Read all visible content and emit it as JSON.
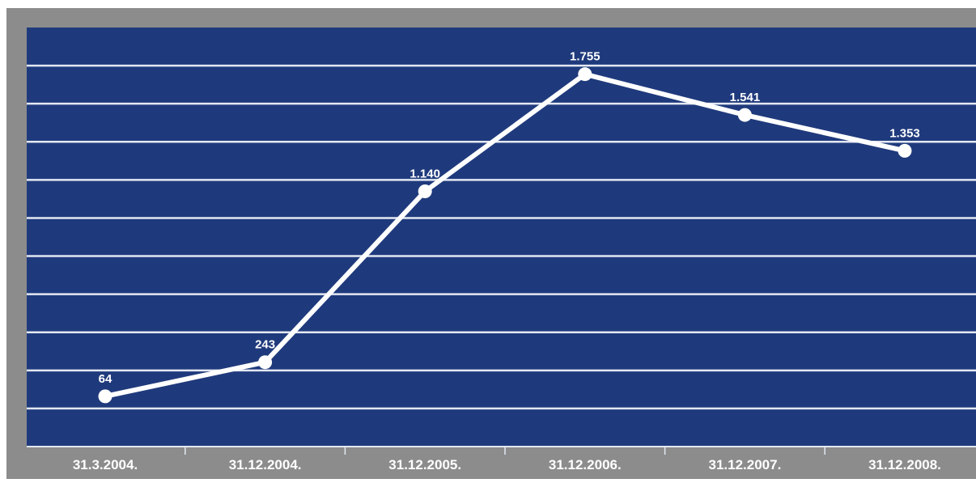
{
  "chart_data": {
    "type": "line",
    "categories": [
      "31.3.2004.",
      "31.12.2004.",
      "31.12.2005.",
      "31.12.2006.",
      "31.12.2007.",
      "31.12.2008."
    ],
    "series": [
      {
        "values": [
          64,
          243,
          1140,
          1755,
          1541,
          1353
        ]
      }
    ],
    "data_labels": [
      "64",
      "243",
      "1.140",
      "1.755",
      "1.541",
      "1.353"
    ],
    "ylim": [
      -200,
      2000
    ],
    "grid": true,
    "legend": "none",
    "colors": {
      "frame": "#8c8c8c",
      "plot_background": "#1f3a7c",
      "gridline": "#e3e8f2",
      "line": "#ffffff",
      "label": "#ffffff"
    }
  }
}
